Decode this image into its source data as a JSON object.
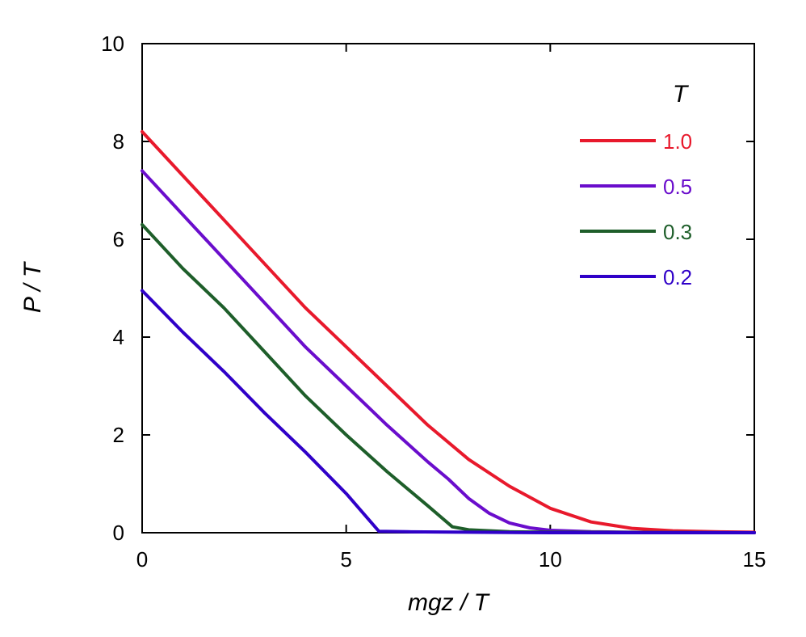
{
  "chart_data": {
    "type": "line",
    "title": "",
    "xlabel": "mgz / T",
    "ylabel": "P / T",
    "xlim": [
      0,
      15
    ],
    "ylim": [
      0,
      10
    ],
    "xticks": [
      0,
      5,
      10,
      15
    ],
    "yticks": [
      0,
      2,
      4,
      6,
      8,
      10
    ],
    "grid": false,
    "legend": {
      "title": "T",
      "placement": "top-right"
    },
    "series": [
      {
        "name": "1.0",
        "color": "#e8192c",
        "x": [
          0,
          1,
          2,
          3,
          4,
          5,
          6,
          7,
          8,
          9,
          10,
          11,
          12,
          13,
          14,
          15
        ],
        "y": [
          8.2,
          7.3,
          6.4,
          5.5,
          4.6,
          3.8,
          3.0,
          2.2,
          1.5,
          0.95,
          0.5,
          0.22,
          0.09,
          0.04,
          0.02,
          0.01
        ]
      },
      {
        "name": "0.5",
        "color": "#6a0dcc",
        "x": [
          0,
          1,
          2,
          3,
          4,
          5,
          6,
          7,
          7.5,
          8,
          8.5,
          9,
          9.5,
          10,
          11,
          12,
          13,
          15
        ],
        "y": [
          7.4,
          6.5,
          5.6,
          4.7,
          3.8,
          3.0,
          2.2,
          1.45,
          1.1,
          0.7,
          0.4,
          0.2,
          0.1,
          0.05,
          0.02,
          0.01,
          0.005,
          0.0
        ]
      },
      {
        "name": "0.3",
        "color": "#1e5e2a",
        "x": [
          0,
          1,
          2,
          3,
          4,
          5,
          6,
          7,
          7.6,
          8,
          9,
          10,
          15
        ],
        "y": [
          6.3,
          5.4,
          4.6,
          3.7,
          2.8,
          2.0,
          1.25,
          0.55,
          0.12,
          0.06,
          0.02,
          0.01,
          0.0
        ]
      },
      {
        "name": "0.2",
        "color": "#2f00c8",
        "x": [
          0,
          1,
          2,
          3,
          4,
          5,
          5.8,
          6.5,
          8,
          10,
          15
        ],
        "y": [
          4.95,
          4.1,
          3.3,
          2.45,
          1.65,
          0.8,
          0.03,
          0.02,
          0.01,
          0.0,
          0.0
        ]
      }
    ]
  }
}
